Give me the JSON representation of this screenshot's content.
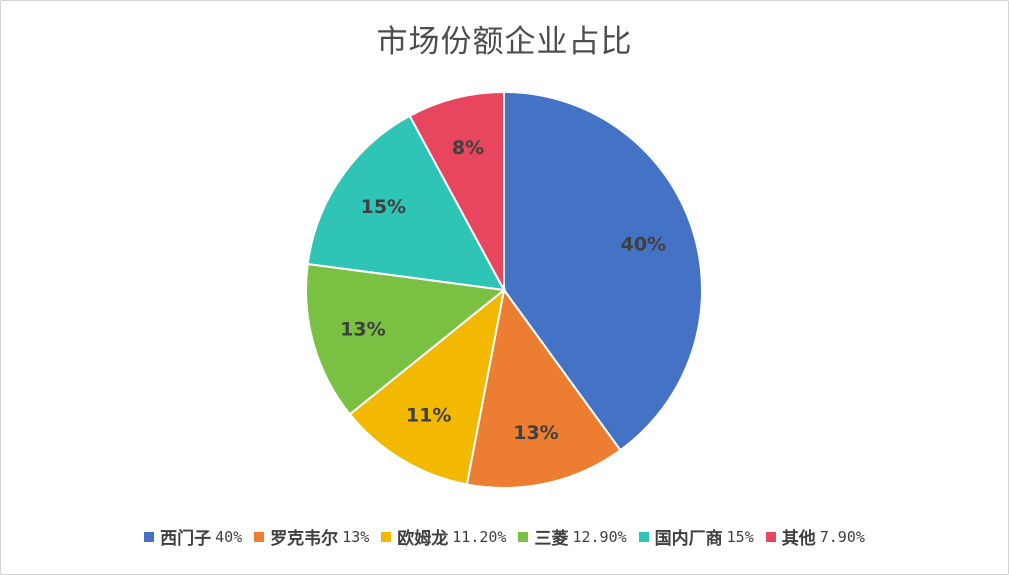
{
  "chart_data": {
    "type": "pie",
    "title": "市场份额企业占比",
    "slices": [
      {
        "name": "西门子",
        "legend_value": "40%",
        "data_label": "40%",
        "value": 40,
        "color": "#4472C4"
      },
      {
        "name": "罗克韦尔",
        "legend_value": "13%",
        "data_label": "13%",
        "value": 13,
        "color": "#ED7D31"
      },
      {
        "name": "欧姆龙",
        "legend_value": "11.20%",
        "data_label": "11%",
        "value": 11.2,
        "color": "#F3B800"
      },
      {
        "name": "三菱",
        "legend_value": "12.90%",
        "data_label": "13%",
        "value": 12.9,
        "color": "#7AC143"
      },
      {
        "name": "国内厂商",
        "legend_value": "15%",
        "data_label": "15%",
        "value": 15,
        "color": "#2EC4B6"
      },
      {
        "name": "其他",
        "legend_value": "7.90%",
        "data_label": "8%",
        "value": 7.9,
        "color": "#E8455E"
      }
    ],
    "legend_position": "bottom",
    "start_angle": "12 o'clock",
    "direction": "clockwise"
  }
}
